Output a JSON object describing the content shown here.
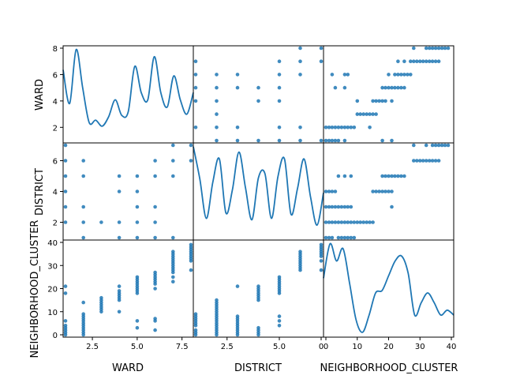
{
  "colors": {
    "series": "#1f77b4",
    "axis": "#000000",
    "background": "#ffffff"
  },
  "chart_data": {
    "type": "scatter-matrix",
    "variables": [
      "WARD",
      "DISTRICT",
      "NEIGHBORHOOD_CLUSTER"
    ],
    "ranges": {
      "WARD": [
        1,
        8
      ],
      "DISTRICT": [
        1,
        7
      ],
      "NEIGHBORHOOD_CLUSTER": [
        0,
        40
      ]
    },
    "ticks": {
      "WARD": {
        "row": [
          "2",
          "4",
          "6",
          "8"
        ],
        "col": [
          "2.5",
          "5.0",
          "7.5"
        ]
      },
      "DISTRICT": {
        "row": [
          "2",
          "4",
          "6"
        ],
        "col": [
          "2.5",
          "5.0",
          "0"
        ]
      },
      "NEIGHBORHOOD_CLUSTER": {
        "row": [
          "0",
          "10",
          "20",
          "30",
          "40"
        ],
        "col": [
          "0",
          "10",
          "20",
          "30",
          "40"
        ]
      }
    },
    "ward_vs_district_points": [
      [
        1,
        7
      ],
      [
        1,
        6
      ],
      [
        1,
        5
      ],
      [
        1,
        4
      ],
      [
        1,
        3
      ],
      [
        1,
        2
      ],
      [
        2,
        6
      ],
      [
        2,
        5
      ],
      [
        2,
        3
      ],
      [
        2,
        2
      ],
      [
        2,
        1
      ],
      [
        3,
        2
      ],
      [
        4,
        5
      ],
      [
        4,
        4
      ],
      [
        4,
        2
      ],
      [
        4,
        1
      ],
      [
        5,
        4
      ],
      [
        5,
        5
      ],
      [
        5,
        3
      ],
      [
        5,
        2
      ],
      [
        5,
        1
      ],
      [
        6,
        6
      ],
      [
        6,
        5
      ],
      [
        6,
        3
      ],
      [
        6,
        2
      ],
      [
        6,
        1
      ],
      [
        7,
        7
      ],
      [
        7,
        6
      ],
      [
        7,
        5
      ],
      [
        7,
        1
      ],
      [
        8,
        7
      ],
      [
        8,
        6
      ]
    ],
    "ward_vs_cluster_points": [
      [
        1,
        0
      ],
      [
        1,
        1
      ],
      [
        1,
        2
      ],
      [
        1,
        3
      ],
      [
        1,
        4
      ],
      [
        1,
        6
      ],
      [
        1,
        18
      ],
      [
        1,
        21
      ],
      [
        2,
        0
      ],
      [
        2,
        1
      ],
      [
        2,
        2
      ],
      [
        2,
        3
      ],
      [
        2,
        4
      ],
      [
        2,
        5
      ],
      [
        2,
        6
      ],
      [
        2,
        7
      ],
      [
        2,
        8
      ],
      [
        2,
        9
      ],
      [
        2,
        14
      ],
      [
        3,
        10
      ],
      [
        3,
        11
      ],
      [
        3,
        12
      ],
      [
        3,
        13
      ],
      [
        3,
        14
      ],
      [
        3,
        15
      ],
      [
        3,
        16
      ],
      [
        4,
        10
      ],
      [
        4,
        15
      ],
      [
        4,
        16
      ],
      [
        4,
        17
      ],
      [
        4,
        18
      ],
      [
        4,
        19
      ],
      [
        4,
        21
      ],
      [
        5,
        3
      ],
      [
        5,
        6
      ],
      [
        5,
        18
      ],
      [
        5,
        19
      ],
      [
        5,
        20
      ],
      [
        5,
        21
      ],
      [
        5,
        22
      ],
      [
        5,
        23
      ],
      [
        5,
        24
      ],
      [
        5,
        25
      ],
      [
        6,
        2
      ],
      [
        6,
        6
      ],
      [
        6,
        7
      ],
      [
        6,
        20
      ],
      [
        6,
        22
      ],
      [
        6,
        23
      ],
      [
        6,
        24
      ],
      [
        6,
        25
      ],
      [
        6,
        26
      ],
      [
        6,
        27
      ],
      [
        7,
        23
      ],
      [
        7,
        25
      ],
      [
        7,
        27
      ],
      [
        7,
        28
      ],
      [
        7,
        29
      ],
      [
        7,
        30
      ],
      [
        7,
        31
      ],
      [
        7,
        32
      ],
      [
        7,
        33
      ],
      [
        7,
        34
      ],
      [
        7,
        35
      ],
      [
        7,
        36
      ],
      [
        8,
        28
      ],
      [
        8,
        32
      ],
      [
        8,
        33
      ],
      [
        8,
        34
      ],
      [
        8,
        35
      ],
      [
        8,
        36
      ],
      [
        8,
        37
      ],
      [
        8,
        38
      ],
      [
        8,
        39
      ]
    ],
    "district_vs_cluster_points": [
      [
        1,
        0
      ],
      [
        1,
        1
      ],
      [
        1,
        2
      ],
      [
        1,
        4
      ],
      [
        1,
        5
      ],
      [
        1,
        6
      ],
      [
        1,
        7
      ],
      [
        1,
        8
      ],
      [
        1,
        9
      ],
      [
        2,
        0
      ],
      [
        2,
        1
      ],
      [
        2,
        2
      ],
      [
        2,
        3
      ],
      [
        2,
        4
      ],
      [
        2,
        5
      ],
      [
        2,
        6
      ],
      [
        2,
        7
      ],
      [
        2,
        8
      ],
      [
        2,
        9
      ],
      [
        2,
        10
      ],
      [
        2,
        11
      ],
      [
        2,
        12
      ],
      [
        2,
        13
      ],
      [
        2,
        14
      ],
      [
        2,
        15
      ],
      [
        3,
        0
      ],
      [
        3,
        1
      ],
      [
        3,
        2
      ],
      [
        3,
        3
      ],
      [
        3,
        4
      ],
      [
        3,
        5
      ],
      [
        3,
        6
      ],
      [
        3,
        7
      ],
      [
        3,
        8
      ],
      [
        3,
        21
      ],
      [
        4,
        0
      ],
      [
        4,
        1
      ],
      [
        4,
        2
      ],
      [
        4,
        3
      ],
      [
        4,
        15
      ],
      [
        4,
        16
      ],
      [
        4,
        17
      ],
      [
        4,
        18
      ],
      [
        4,
        19
      ],
      [
        4,
        20
      ],
      [
        4,
        21
      ],
      [
        5,
        4
      ],
      [
        5,
        6
      ],
      [
        5,
        8
      ],
      [
        5,
        18
      ],
      [
        5,
        19
      ],
      [
        5,
        20
      ],
      [
        5,
        21
      ],
      [
        5,
        22
      ],
      [
        5,
        23
      ],
      [
        5,
        24
      ],
      [
        5,
        25
      ],
      [
        6,
        28
      ],
      [
        6,
        29
      ],
      [
        6,
        30
      ],
      [
        6,
        31
      ],
      [
        6,
        32
      ],
      [
        6,
        33
      ],
      [
        6,
        34
      ],
      [
        6,
        35
      ],
      [
        6,
        36
      ],
      [
        7,
        28
      ],
      [
        7,
        32
      ],
      [
        7,
        34
      ],
      [
        7,
        35
      ],
      [
        7,
        36
      ],
      [
        7,
        37
      ],
      [
        7,
        38
      ],
      [
        7,
        39
      ]
    ],
    "kde": {
      "WARD": {
        "x": [
          1.0,
          1.35,
          1.7,
          2.05,
          2.4,
          2.75,
          3.1,
          3.45,
          3.8,
          4.15,
          4.5,
          4.85,
          5.2,
          5.55,
          5.9,
          6.25,
          6.6,
          6.95,
          7.3,
          7.65,
          8.0
        ],
        "density": [
          6.1,
          3.3,
          7.8,
          4.6,
          1.7,
          1.9,
          1.4,
          2.2,
          3.6,
          2.3,
          2.6,
          6.4,
          4.2,
          3.6,
          7.2,
          4.2,
          3.0,
          5.6,
          3.6,
          2.4,
          4.2
        ]
      },
      "DISTRICT": {
        "x": [
          1.0,
          1.3,
          1.6,
          1.9,
          2.2,
          2.5,
          2.8,
          3.1,
          3.4,
          3.7,
          4.0,
          4.3,
          4.6,
          4.9,
          5.2,
          5.5,
          5.8,
          6.1,
          6.4,
          6.7,
          7.0
        ],
        "density": [
          6.9,
          4.5,
          1.6,
          4.3,
          6.0,
          2.0,
          3.7,
          6.5,
          3.9,
          1.5,
          4.6,
          4.9,
          1.6,
          4.7,
          6.0,
          1.9,
          3.8,
          6.0,
          3.2,
          1.1,
          3.5
        ]
      },
      "NEIGHBORHOOD_CLUSTER": {
        "x": [
          0,
          2,
          4,
          6,
          8,
          10,
          12,
          14,
          16,
          18,
          20,
          22,
          24,
          26,
          28,
          30,
          32,
          34,
          36,
          38,
          40
        ],
        "density": [
          24,
          38,
          31,
          36,
          22,
          7,
          2,
          9,
          18,
          19,
          25,
          31,
          33,
          26,
          9,
          14,
          18,
          14,
          9,
          11,
          9
        ]
      }
    }
  },
  "labels": {
    "ylabels": [
      "WARD",
      "DISTRICT",
      "NEIGHBORHOOD_CLUSTER"
    ],
    "xlabels": [
      "WARD",
      "DISTRICT",
      "NEIGHBORHOOD_CLUSTER"
    ]
  }
}
